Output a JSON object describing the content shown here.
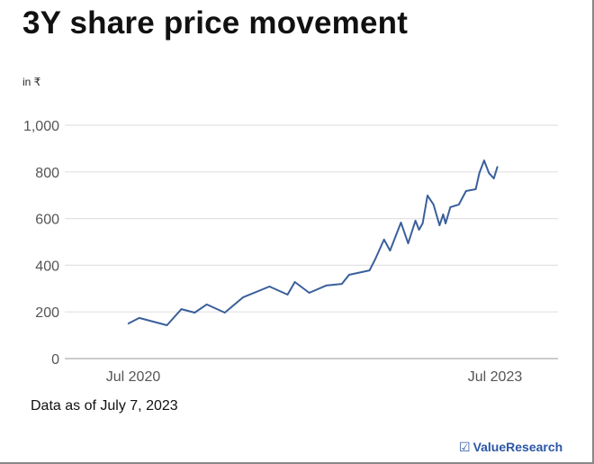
{
  "chart_data": {
    "type": "line",
    "title": "3Y share price movement",
    "ylabel": "in ₹",
    "xlabel": "",
    "ylim": [
      0,
      1000
    ],
    "yticks": [
      0,
      200,
      400,
      600,
      800,
      1000
    ],
    "ytick_labels": [
      "0",
      "200",
      "400",
      "600",
      "800",
      "1,000"
    ],
    "xlim": [
      2020.2,
      2023.8
    ],
    "xticks": [
      2020.5,
      2023.5
    ],
    "xtick_labels": [
      "Jul 2020",
      "Jul 2023"
    ],
    "grid": true,
    "color": "#3a5f9b",
    "series": [
      {
        "name": "Share price",
        "x": [
          2020.46,
          2020.55,
          2020.78,
          2020.9,
          2021.01,
          2021.11,
          2021.26,
          2021.41,
          2021.63,
          2021.78,
          2021.84,
          2021.96,
          2022.1,
          2022.23,
          2022.29,
          2022.46,
          2022.51,
          2022.58,
          2022.63,
          2022.72,
          2022.78,
          2022.84,
          2022.87,
          2022.9,
          2022.94,
          2022.99,
          2023.04,
          2023.07,
          2023.09,
          2023.13,
          2023.2,
          2023.26,
          2023.34,
          2023.37,
          2023.41,
          2023.45,
          2023.49,
          2023.52
        ],
        "values": [
          150,
          174,
          143,
          212,
          197,
          232,
          197,
          262,
          309,
          274,
          328,
          282,
          313,
          320,
          359,
          378,
          429,
          510,
          463,
          583,
          494,
          591,
          552,
          579,
          699,
          660,
          571,
          618,
          579,
          649,
          660,
          718,
          726,
          795,
          849,
          795,
          772,
          822
        ]
      }
    ],
    "footnote": "Data as of July 7, 2023"
  },
  "brand": {
    "name": "ValueResearch",
    "icon": "checkbox-icon",
    "color": "#2b56a6"
  }
}
